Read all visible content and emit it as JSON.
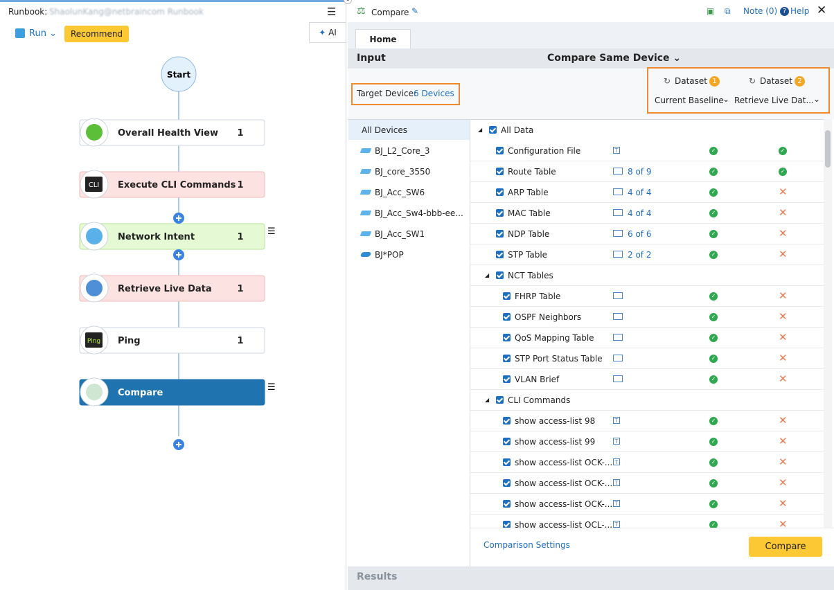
{
  "runbook": {
    "label": "Runbook:",
    "name": "ShaolunKang@netbraincom Runbook",
    "run": "Run",
    "recommend": "Recommend",
    "ai": "AI",
    "start": "Start",
    "nodes": [
      {
        "label": "Overall Health View",
        "count": 1,
        "style": "plain",
        "icon": "health"
      },
      {
        "label": "Execute CLI Commands",
        "count": 1,
        "style": "pink",
        "icon_text": "CLI"
      },
      {
        "label": "Network Intent",
        "count": 1,
        "style": "green",
        "icon": "intent",
        "menu": true
      },
      {
        "label": "Retrieve Live Data",
        "count": 1,
        "style": "pink",
        "icon": "retrieve"
      },
      {
        "label": "Ping",
        "count": 1,
        "style": "plain",
        "icon_text": "Ping"
      },
      {
        "label": "Compare",
        "count": null,
        "style": "selected",
        "icon": "scale",
        "menu": true
      }
    ]
  },
  "compare": {
    "title": "Compare",
    "note": "Note (0)",
    "help": "Help",
    "tab": "Home",
    "input": "Input",
    "mode": "Compare Same Device",
    "target_label": "Target Device:",
    "target_value": "6 Devices",
    "datasets": [
      {
        "label": "Dataset",
        "badge": "1",
        "value": "Current Baseline"
      },
      {
        "label": "Dataset",
        "badge": "2",
        "value": "Retrieve Live Dat..."
      }
    ],
    "devices": [
      "All Devices",
      "BJ_L2_Core_3",
      "BJ_core_3550",
      "BJ_Acc_SW6",
      "BJ_Acc_Sw4-bbb-ee...",
      "BJ_Acc_SW1",
      "BJ*POP"
    ],
    "rows": [
      {
        "label": "All Data",
        "level": 0,
        "group": true
      },
      {
        "label": "Configuration File",
        "level": 1,
        "icon": "text",
        "s1": true,
        "s2": true
      },
      {
        "label": "Route Table",
        "level": 1,
        "icon": "table",
        "detail": "8 of 9",
        "s1": true,
        "s2": true
      },
      {
        "label": "ARP Table",
        "level": 1,
        "icon": "table",
        "detail": "4 of 4",
        "s1": true,
        "s2": false
      },
      {
        "label": "MAC Table",
        "level": 1,
        "icon": "table",
        "detail": "4 of 4",
        "s1": true,
        "s2": false
      },
      {
        "label": "NDP Table",
        "level": 1,
        "icon": "table",
        "detail": "6 of 6",
        "s1": true,
        "s2": false
      },
      {
        "label": "STP Table",
        "level": 1,
        "icon": "table",
        "detail": "2 of 2",
        "s1": true,
        "s2": false
      },
      {
        "label": "NCT Tables",
        "level": 1,
        "group": true
      },
      {
        "label": "FHRP Table",
        "level": 2,
        "icon": "table",
        "s1": true,
        "s2": false
      },
      {
        "label": "OSPF Neighbors",
        "level": 2,
        "icon": "table",
        "s1": true,
        "s2": false
      },
      {
        "label": "QoS Mapping Table",
        "level": 2,
        "icon": "table",
        "s1": true,
        "s2": false
      },
      {
        "label": "STP Port Status Table",
        "level": 2,
        "icon": "table",
        "s1": true,
        "s2": false
      },
      {
        "label": "VLAN Brief",
        "level": 2,
        "icon": "table",
        "s1": true,
        "s2": false
      },
      {
        "label": "CLI Commands",
        "level": 1,
        "group": true
      },
      {
        "label": "show access-list 98",
        "level": 2,
        "icon": "text",
        "s1": true,
        "s2": false
      },
      {
        "label": "show access-list 99",
        "level": 2,
        "icon": "text",
        "s1": true,
        "s2": false
      },
      {
        "label": "show access-list OCK-...",
        "level": 2,
        "icon": "text",
        "s1": true,
        "s2": false
      },
      {
        "label": "show access-list OCK-...",
        "level": 2,
        "icon": "text",
        "s1": true,
        "s2": false
      },
      {
        "label": "show access-list OCK-...",
        "level": 2,
        "icon": "text",
        "s1": true,
        "s2": false
      },
      {
        "label": "show access-list OCL-...",
        "level": 2,
        "icon": "text",
        "s1": true,
        "s2": false
      }
    ],
    "settings": "Comparison Settings",
    "button": "Compare",
    "results": "Results"
  }
}
